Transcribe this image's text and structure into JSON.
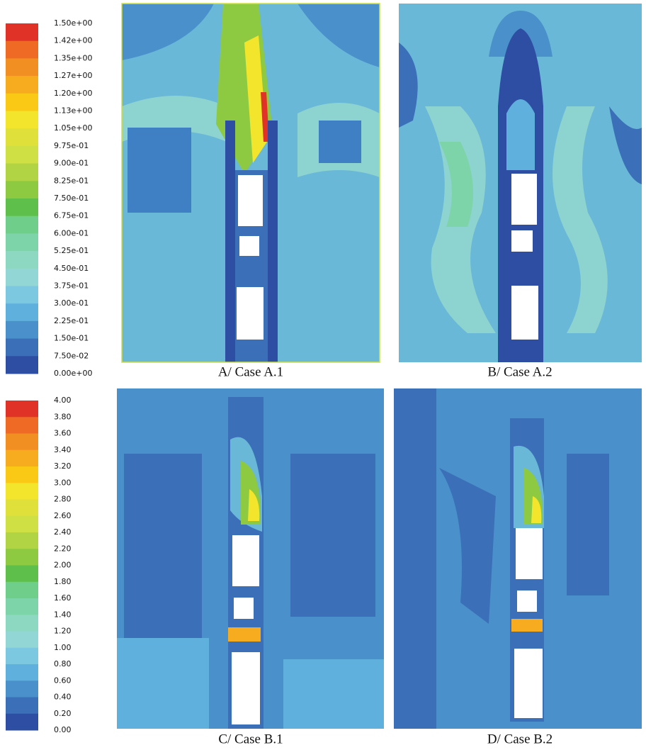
{
  "legend_top": {
    "labels": [
      "1.50e+00",
      "1.42e+00",
      "1.35e+00",
      "1.27e+00",
      "1.20e+00",
      "1.13e+00",
      "1.05e+00",
      "9.75e-01",
      "9.00e-01",
      "8.25e-01",
      "7.50e-01",
      "6.75e-01",
      "6.00e-01",
      "5.25e-01",
      "4.50e-01",
      "3.75e-01",
      "3.00e-01",
      "2.25e-01",
      "1.50e-01",
      "7.50e-02",
      "0.00e+00"
    ]
  },
  "legend_bottom": {
    "labels": [
      "4.00",
      "3.80",
      "3.60",
      "3.40",
      "3.20",
      "3.00",
      "2.80",
      "2.60",
      "2.40",
      "2.20",
      "2.00",
      "1.80",
      "1.60",
      "1.40",
      "1.20",
      "1.00",
      "0.80",
      "0.60",
      "0.40",
      "0.20",
      "0.00"
    ]
  },
  "panels": [
    {
      "caption": "A/ Case A.1"
    },
    {
      "caption": "B/ Case A.2"
    },
    {
      "caption": "C/ Case B.1"
    },
    {
      "caption": "D/ Case B.2"
    }
  ]
}
